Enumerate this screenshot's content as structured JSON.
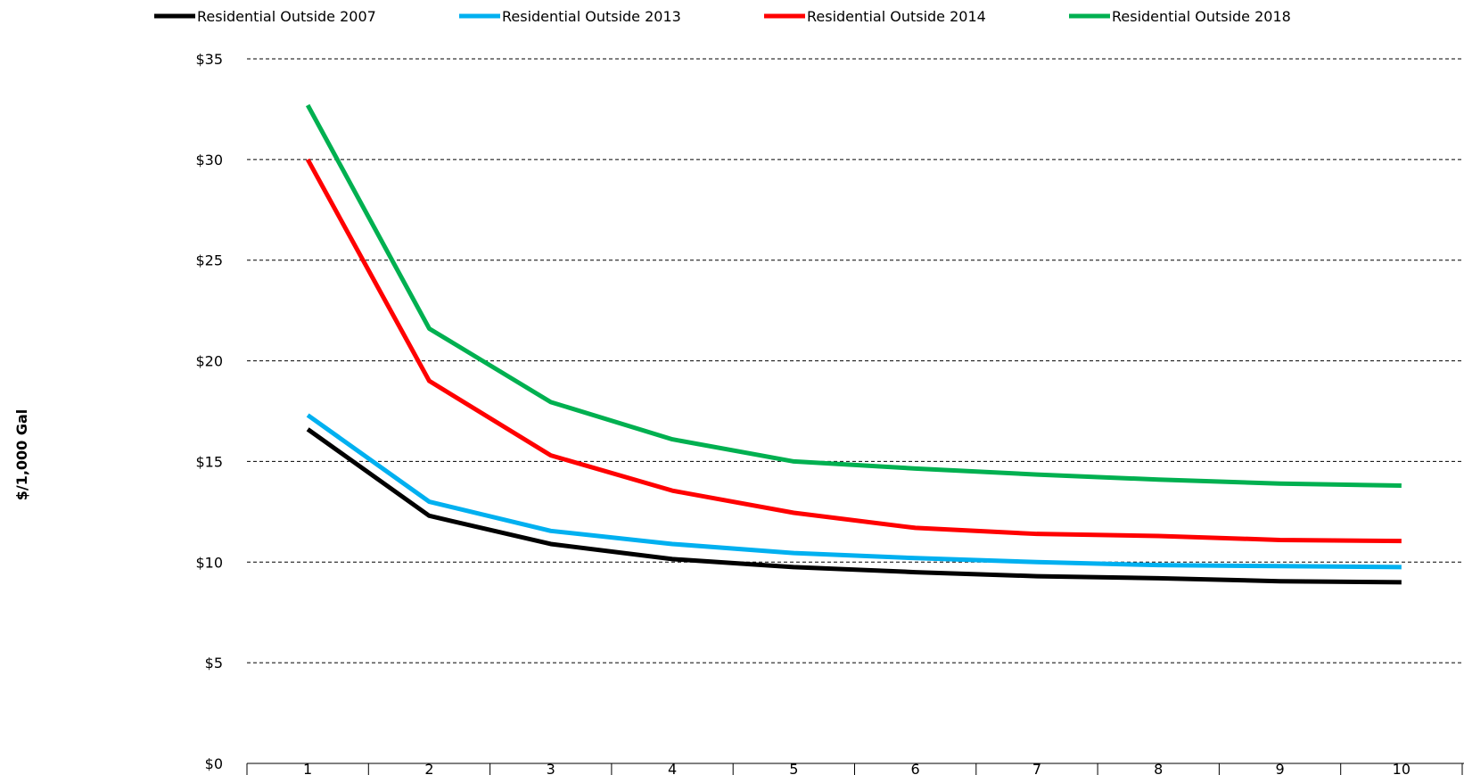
{
  "chart_data": {
    "type": "line",
    "y_label": "$/1,000 Gal",
    "categories": [
      "1",
      "2",
      "3",
      "4",
      "5",
      "6",
      "7",
      "8",
      "9",
      "10"
    ],
    "series": [
      {
        "name": "Residential Outside 2007",
        "color": "#000000",
        "values": [
          16.6,
          12.3,
          10.9,
          10.15,
          9.75,
          9.5,
          9.3,
          9.2,
          9.05,
          9.0
        ]
      },
      {
        "name": "Residential Outside 2013",
        "color": "#00b0f0",
        "values": [
          17.3,
          13.0,
          11.55,
          10.9,
          10.45,
          10.2,
          10.0,
          9.85,
          9.8,
          9.75
        ]
      },
      {
        "name": "Residential Outside 2014",
        "color": "#ff0000",
        "values": [
          30.0,
          19.0,
          15.3,
          13.55,
          12.45,
          11.7,
          11.4,
          11.3,
          11.1,
          11.05
        ]
      },
      {
        "name": "Residential Outside 2018",
        "color": "#00b050",
        "values": [
          32.7,
          21.6,
          17.95,
          16.1,
          15.0,
          14.65,
          14.35,
          14.1,
          13.9,
          13.8
        ]
      }
    ],
    "ylim": [
      0,
      35
    ],
    "yticks": [
      {
        "value": 0,
        "label": "$0"
      },
      {
        "value": 5,
        "label": "$5"
      },
      {
        "value": 10,
        "label": "$10"
      },
      {
        "value": 15,
        "label": "$15"
      },
      {
        "value": 20,
        "label": "$20"
      },
      {
        "value": 25,
        "label": "$25"
      },
      {
        "value": 30,
        "label": "$30"
      },
      {
        "value": 35,
        "label": "$35"
      }
    ],
    "grid": true,
    "legend": "top"
  }
}
